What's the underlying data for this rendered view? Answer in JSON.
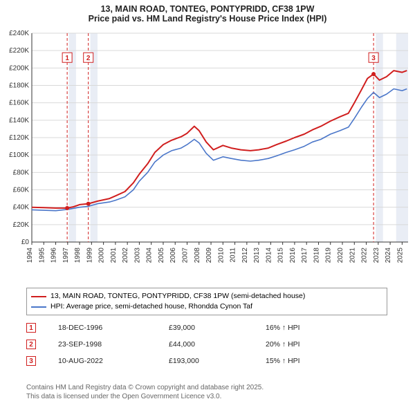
{
  "title_line1": "13, MAIN ROAD, TONTEG, PONTYPRIDD, CF38 1PW",
  "title_line2": "Price paid vs. HM Land Registry's House Price Index (HPI)",
  "chart": {
    "type": "line",
    "background_color": "#ffffff",
    "grid_color": "#d9d9d9",
    "axis_color": "#333333",
    "tick_font_size": 10,
    "label_font_size": 10,
    "xlim": [
      1994,
      2025.5
    ],
    "ylim": [
      0,
      240000
    ],
    "ytick_step": 20000,
    "y_prefix": "£",
    "y_suffix": "K",
    "xtick_step": 1,
    "series": [
      {
        "name": "13, MAIN ROAD, TONTEG, PONTYPRIDD, CF38 1PW (semi-detached house)",
        "color": "#d01e1e",
        "line_width": 2,
        "data": [
          [
            1994,
            40000
          ],
          [
            1995,
            39500
          ],
          [
            1996,
            39000
          ],
          [
            1996.96,
            39000
          ],
          [
            1997.5,
            40500
          ],
          [
            1998,
            43000
          ],
          [
            1998.73,
            44000
          ],
          [
            1999.5,
            47000
          ],
          [
            2000.5,
            50000
          ],
          [
            2001,
            53000
          ],
          [
            2001.8,
            58000
          ],
          [
            2002.5,
            68000
          ],
          [
            2003,
            78000
          ],
          [
            2003.7,
            90000
          ],
          [
            2004.3,
            103000
          ],
          [
            2005,
            112000
          ],
          [
            2005.7,
            117000
          ],
          [
            2006.5,
            121000
          ],
          [
            2007,
            125000
          ],
          [
            2007.6,
            133000
          ],
          [
            2008,
            128000
          ],
          [
            2008.6,
            115000
          ],
          [
            2009.2,
            106000
          ],
          [
            2010,
            111000
          ],
          [
            2010.7,
            108000
          ],
          [
            2011.5,
            106000
          ],
          [
            2012.3,
            105000
          ],
          [
            2013,
            106000
          ],
          [
            2013.8,
            108000
          ],
          [
            2014.5,
            112000
          ],
          [
            2015.3,
            116000
          ],
          [
            2016,
            120000
          ],
          [
            2016.8,
            124000
          ],
          [
            2017.5,
            129000
          ],
          [
            2018.2,
            133000
          ],
          [
            2019,
            139000
          ],
          [
            2019.8,
            144000
          ],
          [
            2020.5,
            148000
          ],
          [
            2021,
            160000
          ],
          [
            2021.6,
            175000
          ],
          [
            2022.1,
            188000
          ],
          [
            2022.61,
            193000
          ],
          [
            2023.1,
            186000
          ],
          [
            2023.7,
            190000
          ],
          [
            2024.3,
            197000
          ],
          [
            2025,
            195000
          ],
          [
            2025.4,
            197000
          ]
        ]
      },
      {
        "name": "HPI: Average price, semi-detached house, Rhondda Cynon Taf",
        "color": "#4a76c9",
        "line_width": 1.6,
        "data": [
          [
            1994,
            37000
          ],
          [
            1995,
            36500
          ],
          [
            1996,
            36000
          ],
          [
            1997,
            37500
          ],
          [
            1998,
            40000
          ],
          [
            1998.73,
            41000
          ],
          [
            1999.5,
            44000
          ],
          [
            2000.5,
            46000
          ],
          [
            2001,
            48000
          ],
          [
            2001.8,
            52000
          ],
          [
            2002.5,
            60000
          ],
          [
            2003,
            70000
          ],
          [
            2003.7,
            80000
          ],
          [
            2004.3,
            92000
          ],
          [
            2005,
            100000
          ],
          [
            2005.7,
            105000
          ],
          [
            2006.5,
            108000
          ],
          [
            2007,
            112000
          ],
          [
            2007.6,
            118000
          ],
          [
            2008,
            114000
          ],
          [
            2008.6,
            102000
          ],
          [
            2009.2,
            94000
          ],
          [
            2010,
            98000
          ],
          [
            2010.7,
            96000
          ],
          [
            2011.5,
            94000
          ],
          [
            2012.3,
            93000
          ],
          [
            2013,
            94000
          ],
          [
            2013.8,
            96000
          ],
          [
            2014.5,
            99000
          ],
          [
            2015.3,
            103000
          ],
          [
            2016,
            106000
          ],
          [
            2016.8,
            110000
          ],
          [
            2017.5,
            115000
          ],
          [
            2018.2,
            118000
          ],
          [
            2019,
            124000
          ],
          [
            2019.8,
            128000
          ],
          [
            2020.5,
            132000
          ],
          [
            2021,
            142000
          ],
          [
            2021.6,
            155000
          ],
          [
            2022.1,
            165000
          ],
          [
            2022.61,
            172000
          ],
          [
            2023.1,
            166000
          ],
          [
            2023.7,
            170000
          ],
          [
            2024.3,
            176000
          ],
          [
            2025,
            174000
          ],
          [
            2025.4,
            176000
          ]
        ]
      }
    ],
    "vbands": [
      {
        "x": 1997.1,
        "width": 0.6,
        "fill": "#e9edf5"
      },
      {
        "x": 1998.9,
        "width": 0.6,
        "fill": "#e9edf5"
      },
      {
        "x": 2022.8,
        "width": 0.6,
        "fill": "#e9edf5"
      },
      {
        "x": 2024.5,
        "width": 1.0,
        "fill": "#e9edf5"
      }
    ],
    "vlines": [
      {
        "x": 1996.96,
        "color": "#d01e1e",
        "dash": "4,3",
        "marker_label": "1",
        "marker_y": 212000
      },
      {
        "x": 1998.73,
        "color": "#d01e1e",
        "dash": "4,3",
        "marker_label": "2",
        "marker_y": 212000
      },
      {
        "x": 2022.61,
        "color": "#d01e1e",
        "dash": "4,3",
        "marker_label": "3",
        "marker_y": 212000
      }
    ],
    "sale_points": [
      {
        "x": 1996.96,
        "y": 39000,
        "color": "#d01e1e",
        "r": 3
      },
      {
        "x": 1998.73,
        "y": 44000,
        "color": "#d01e1e",
        "r": 3
      },
      {
        "x": 2022.61,
        "y": 193000,
        "color": "#d01e1e",
        "r": 3
      }
    ]
  },
  "legend": {
    "items": [
      {
        "label": "13, MAIN ROAD, TONTEG, PONTYPRIDD, CF38 1PW (semi-detached house)",
        "color": "#d01e1e"
      },
      {
        "label": "HPI: Average price, semi-detached house, Rhondda Cynon Taf",
        "color": "#4a76c9"
      }
    ]
  },
  "events": [
    {
      "num": "1",
      "date": "18-DEC-1996",
      "price": "£39,000",
      "delta": "16% ↑ HPI"
    },
    {
      "num": "2",
      "date": "23-SEP-1998",
      "price": "£44,000",
      "delta": "20% ↑ HPI"
    },
    {
      "num": "3",
      "date": "10-AUG-2022",
      "price": "£193,000",
      "delta": "15% ↑ HPI"
    }
  ],
  "footer_line1": "Contains HM Land Registry data © Crown copyright and database right 2025.",
  "footer_line2": "This data is licensed under the Open Government Licence v3.0."
}
